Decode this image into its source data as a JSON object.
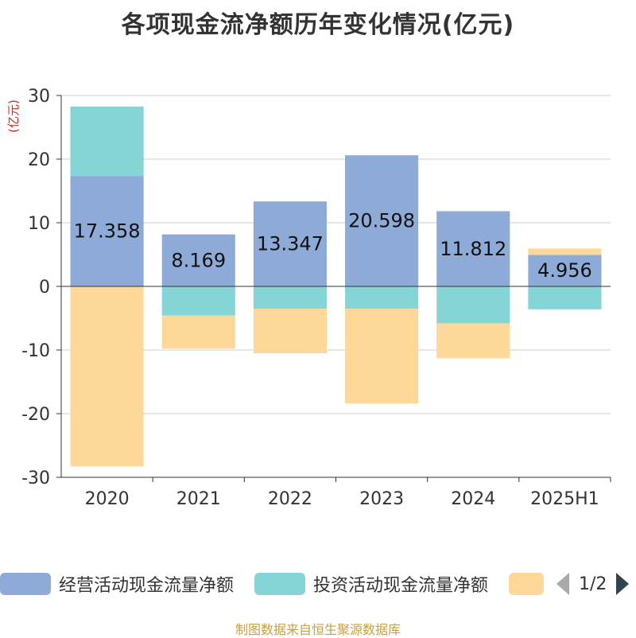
{
  "title": "各项现金流净额历年变化情况(亿元)",
  "source_text": "制图数据来自恒生聚源数据库",
  "legend": {
    "items": [
      {
        "label": "经营活动现金流量净额",
        "color": "#8eabd8"
      },
      {
        "label": "投资活动现金流量净额",
        "color": "#86d5d6"
      },
      {
        "label": "",
        "color": "#fdd898"
      }
    ],
    "page": "1/2"
  },
  "chart_data": {
    "type": "bar",
    "stacked": true,
    "unit_label": "(亿元)",
    "categories": [
      "2020",
      "2021",
      "2022",
      "2023",
      "2024",
      "2025H1"
    ],
    "ylim": [
      -30,
      30
    ],
    "yticks": [
      30,
      20,
      10,
      0,
      -10,
      -20,
      -30
    ],
    "grid": true,
    "legend_position": "bottom",
    "series": [
      {
        "name": "经营活动现金流量净额",
        "color": "#8eabd8",
        "values": [
          17.358,
          8.169,
          13.347,
          20.598,
          11.812,
          4.956
        ],
        "show_labels": true
      },
      {
        "name": "投资活动现金流量净额",
        "color": "#86d5d6",
        "values": [
          10.9,
          -4.6,
          -3.5,
          -3.5,
          -5.8,
          -3.6
        ],
        "show_labels": false
      },
      {
        "color": "#fdd898",
        "values": [
          -28.3,
          -5.2,
          -7.0,
          -14.9,
          -5.5,
          1.0
        ],
        "show_labels": false
      }
    ]
  }
}
